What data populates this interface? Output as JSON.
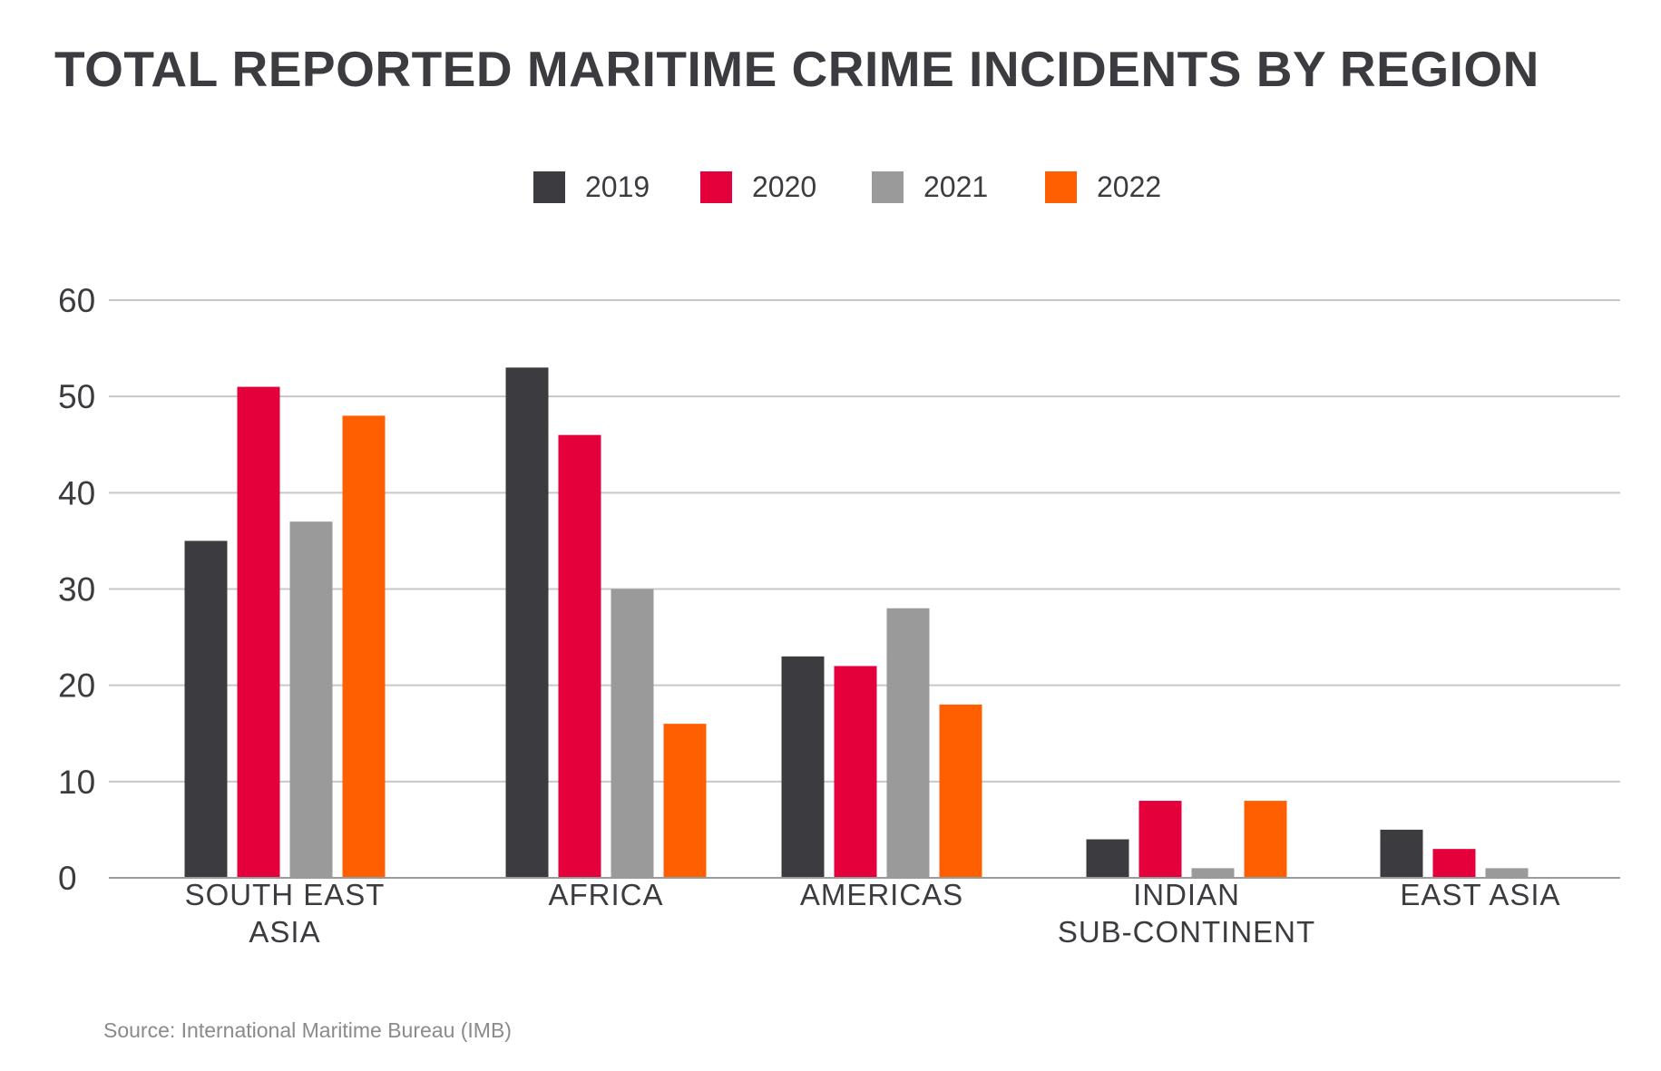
{
  "chart_data": {
    "type": "bar",
    "title": "TOTAL REPORTED MARITIME CRIME INCIDENTS BY REGION",
    "categories": [
      [
        "SOUTH EAST",
        "ASIA"
      ],
      [
        "AFRICA"
      ],
      [
        "AMERICAS"
      ],
      [
        "INDIAN",
        "SUB-CONTINENT"
      ],
      [
        "EAST ASIA"
      ]
    ],
    "series": [
      {
        "name": "2019",
        "color": "#3c3b40",
        "values": [
          35,
          53,
          23,
          4,
          5
        ]
      },
      {
        "name": "2020",
        "color": "#e4003a",
        "values": [
          51,
          46,
          22,
          8,
          3
        ]
      },
      {
        "name": "2021",
        "color": "#9a9a9a",
        "values": [
          37,
          30,
          28,
          1,
          1
        ]
      },
      {
        "name": "2022",
        "color": "#ff5f00",
        "values": [
          48,
          16,
          18,
          8,
          null
        ]
      }
    ],
    "yticks": [
      "0",
      "10",
      "20",
      "30",
      "40",
      "50",
      "60"
    ],
    "ylim": [
      0,
      60
    ],
    "xlabel": "",
    "ylabel": "",
    "grid": true,
    "legend_position": "top-center",
    "source": "Source: International Maritime Bureau (IMB)"
  }
}
